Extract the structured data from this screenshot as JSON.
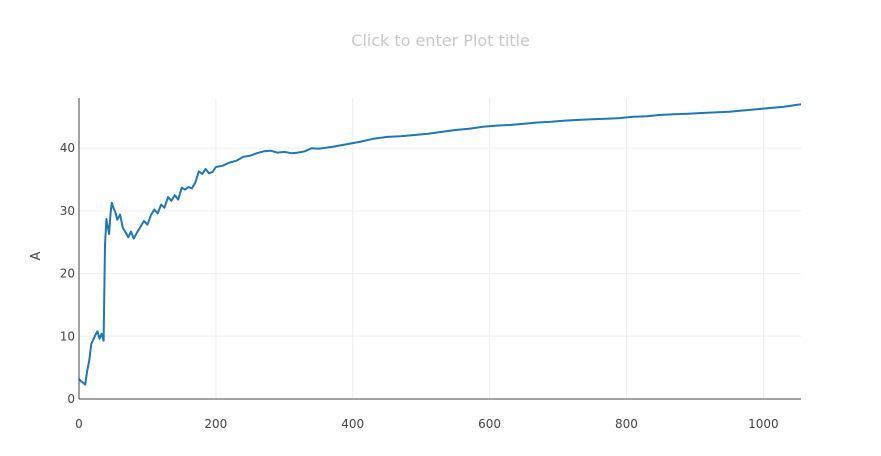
{
  "plot": {
    "title_placeholder": "Click to enter Plot title"
  },
  "colors": {
    "line": "#1f77b4",
    "grid": "#eeeeee",
    "axis": "#444444"
  },
  "chart_data": {
    "type": "line",
    "title": "",
    "xlabel": "",
    "ylabel": "A",
    "xlim": [
      0,
      1055
    ],
    "ylim": [
      0,
      48
    ],
    "grid": true,
    "x_ticks": [
      0,
      200,
      400,
      600,
      800,
      1000
    ],
    "y_ticks": [
      0,
      10,
      20,
      30,
      40
    ],
    "series": [
      {
        "x": [
          0,
          3,
          6,
          9,
          12,
          15,
          18,
          21,
          24,
          27,
          30,
          33,
          36,
          38,
          40,
          42,
          44,
          46,
          48,
          50,
          53,
          56,
          60,
          64,
          68,
          72,
          76,
          80,
          85,
          90,
          95,
          100,
          105,
          110,
          115,
          120,
          125,
          130,
          135,
          140,
          145,
          150,
          155,
          160,
          165,
          170,
          175,
          180,
          185,
          190,
          195,
          200,
          210,
          220,
          230,
          240,
          250,
          260,
          270,
          280,
          290,
          300,
          310,
          320,
          330,
          340,
          350,
          370,
          390,
          410,
          430,
          450,
          470,
          490,
          510,
          530,
          550,
          570,
          590,
          610,
          630,
          650,
          670,
          690,
          710,
          730,
          750,
          770,
          790,
          810,
          830,
          850,
          870,
          890,
          910,
          930,
          950,
          970,
          990,
          1010,
          1030,
          1055
        ],
        "y": [
          3.2,
          2.8,
          2.6,
          2.3,
          4.5,
          6.2,
          8.8,
          9.5,
          10.2,
          10.8,
          9.6,
          10.4,
          9.3,
          24.5,
          28.7,
          27.5,
          26.3,
          29.5,
          31.3,
          30.6,
          29.8,
          28.6,
          29.4,
          27.3,
          26.6,
          25.8,
          26.7,
          25.6,
          26.6,
          27.5,
          28.4,
          27.8,
          29.3,
          30.2,
          29.6,
          31.0,
          30.5,
          32.2,
          31.6,
          32.5,
          31.8,
          33.7,
          33.4,
          33.8,
          33.6,
          34.5,
          36.3,
          35.9,
          36.7,
          36.0,
          36.2,
          37.0,
          37.2,
          37.7,
          38.0,
          38.6,
          38.8,
          39.2,
          39.5,
          39.6,
          39.3,
          39.4,
          39.2,
          39.3,
          39.5,
          40.0,
          39.9,
          40.2,
          40.6,
          41.0,
          41.5,
          41.8,
          41.9,
          42.1,
          42.3,
          42.6,
          42.9,
          43.1,
          43.4,
          43.6,
          43.7,
          43.9,
          44.1,
          44.2,
          44.4,
          44.5,
          44.6,
          44.7,
          44.8,
          45.0,
          45.1,
          45.3,
          45.4,
          45.5,
          45.6,
          45.7,
          45.8,
          46.0,
          46.2,
          46.4,
          46.6,
          47.0
        ]
      }
    ]
  }
}
